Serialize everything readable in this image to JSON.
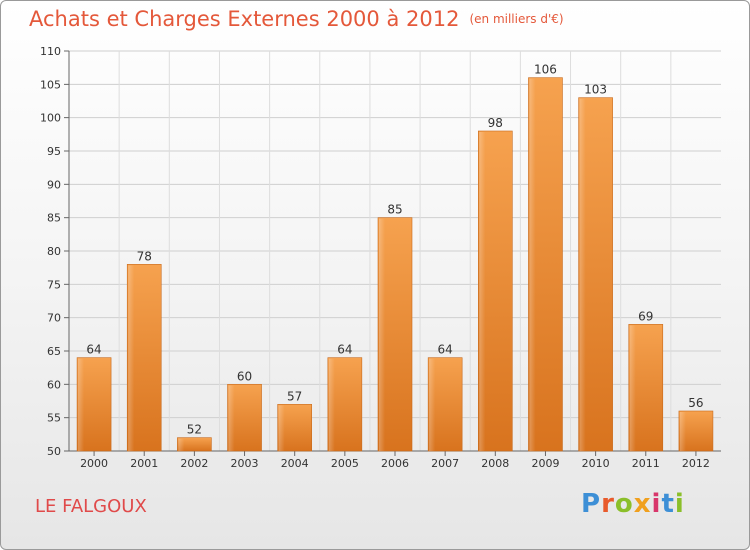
{
  "chart_data": {
    "type": "bar",
    "title": "Achats et Charges Externes 2000 à 2012",
    "unit": "(en milliers d'€)",
    "categories": [
      "2000",
      "2001",
      "2002",
      "2003",
      "2004",
      "2005",
      "2006",
      "2007",
      "2008",
      "2009",
      "2010",
      "2011",
      "2012"
    ],
    "values": [
      64,
      78,
      52,
      60,
      57,
      64,
      85,
      64,
      98,
      106,
      103,
      69,
      56
    ],
    "ylim": [
      50,
      110
    ],
    "yticks": [
      50,
      55,
      60,
      65,
      70,
      75,
      80,
      85,
      90,
      95,
      100,
      105,
      110
    ],
    "xlabel": "",
    "ylabel": "",
    "grid": true,
    "bar_color_light": "#f6a24f",
    "bar_color_dark": "#d8731e"
  },
  "footer": {
    "place": "LE FALGOUX",
    "logo": [
      "P",
      "r",
      "o",
      "x",
      "i",
      "t",
      "i"
    ]
  }
}
